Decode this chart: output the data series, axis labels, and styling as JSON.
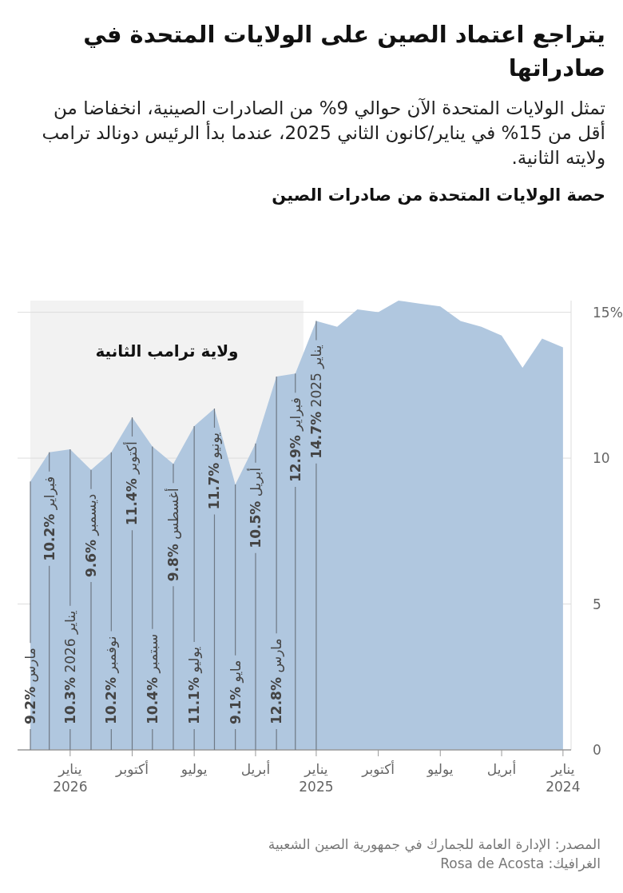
{
  "chart_data": {
    "type": "area",
    "title": "يتراجع اعتماد الصين على الولايات المتحدة في صادراتها",
    "subtitle": "تمثل الولايات المتحدة الآن حوالي 9% من الصادرات الصينية، انخفاضا من أقل من 15% في يناير/كانون الثاني 2025، عندما بدأ الرئيس دونالد ترامب ولايته الثانية.",
    "x": [
      "2024-01",
      "2024-02",
      "2024-03",
      "2024-04",
      "2024-05",
      "2024-06",
      "2024-07",
      "2024-08",
      "2024-09",
      "2024-10",
      "2024-11",
      "2024-12",
      "2025-01",
      "2025-02",
      "2025-03",
      "2025-04",
      "2025-05",
      "2025-06",
      "2025-07",
      "2025-08",
      "2025-09",
      "2025-10",
      "2025-11",
      "2025-12",
      "2026-01",
      "2026-02",
      "2026-03"
    ],
    "series": [
      {
        "color": "#b0c7df",
        "values": [
          13.8,
          14.1,
          13.1,
          14.2,
          14.5,
          14.7,
          15.2,
          15.3,
          15.4,
          15.0,
          15.1,
          14.5,
          14.7,
          12.9,
          12.8,
          10.5,
          9.1,
          11.7,
          11.1,
          9.8,
          10.4,
          11.4,
          10.2,
          9.6,
          10.3,
          10.2,
          9.2
        ]
      }
    ],
    "xlim": [
      "2026-03-20",
      "2023-12-20"
    ],
    "xticks": [
      {
        "value": "2024-01",
        "label": "يناير\n2024"
      },
      {
        "value": "2024-04",
        "label": "أبريل"
      },
      {
        "value": "2024-07",
        "label": "يوليو"
      },
      {
        "value": "2024-10",
        "label": "أكتوبر"
      },
      {
        "value": "2025-01",
        "label": "يناير\n2025"
      },
      {
        "value": "2025-04",
        "label": "أبريل"
      },
      {
        "value": "2025-07",
        "label": "يوليو"
      },
      {
        "value": "2025-10",
        "label": "أكتوبر"
      },
      {
        "value": "2026-01",
        "label": "يناير\n2026"
      }
    ],
    "ylim": [
      0,
      15.4
    ],
    "yticks": [
      0,
      5,
      10,
      {
        "value": 15,
        "label": "15%"
      }
    ],
    "grid": "y",
    "bands": [
      {
        "axis": "x",
        "from": "2026-03-01",
        "to": "2025-01-20",
        "label": "ولاية ترامب الثانية",
        "color": "#f2f2f2"
      }
    ],
    "annotations": [
      "حصة الولايات المتحدة من صادرات الصين",
      {
        "text": "مارس %9.2",
        "x": "2026-03",
        "y": 9.2
      },
      {
        "text": "فبراير %10.2",
        "x": "2026-02",
        "y": 10.2
      },
      {
        "text": "يناير 2026 %10.3",
        "x": "2026-01",
        "y": 10.3
      },
      {
        "text": "ديسمبر %9.6",
        "x": "2025-12",
        "y": 9.6
      },
      {
        "text": "نوفمبر %10.2",
        "x": "2025-11",
        "y": 10.2
      },
      {
        "text": "أكتوبر %11.4",
        "x": "2025-10",
        "y": 11.4
      },
      {
        "text": "سبتمبر %10.4",
        "x": "2025-09",
        "y": 10.4
      },
      {
        "text": "أغسطس %9.8",
        "x": "2025-08",
        "y": 9.8
      },
      {
        "text": "يوليو %11.1",
        "x": "2025-07",
        "y": 11.1
      },
      {
        "text": "يونيو %11.7",
        "x": "2025-06",
        "y": 11.7
      },
      {
        "text": "مايو %9.1",
        "x": "2025-05",
        "y": 9.1
      },
      {
        "text": "أبريل %10.5",
        "x": "2025-04",
        "y": 10.5
      },
      {
        "text": "مارس %12.8",
        "x": "2025-03",
        "y": 12.8
      },
      {
        "text": "فبراير %12.9",
        "x": "2025-02",
        "y": 12.9
      },
      {
        "text": "يناير 2025 %14.7",
        "x": "2025-01",
        "y": 14.7
      },
      "المصدر: الإدارة العامة للجمارك في جمهورية الصين الشعبية",
      "الغرافيك: Rosa de Acosta"
    ]
  }
}
